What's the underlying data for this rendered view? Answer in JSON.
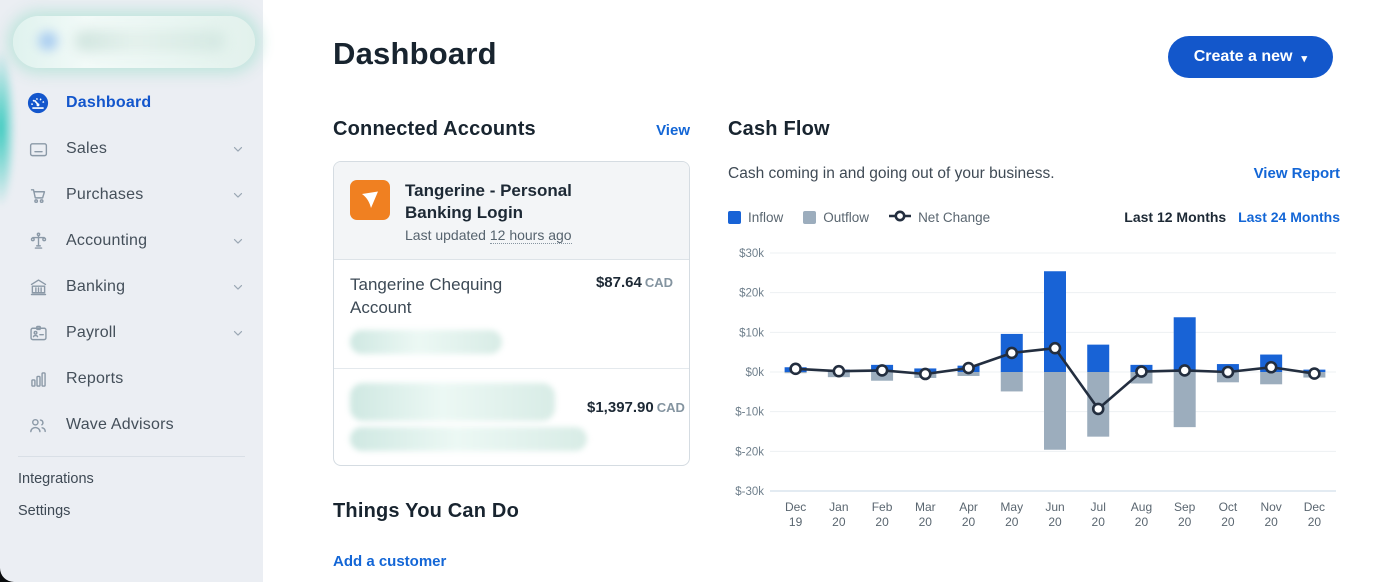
{
  "sidebar": {
    "items": [
      {
        "label": "Dashboard",
        "icon": "dashboard",
        "active": true,
        "chevron": false
      },
      {
        "label": "Sales",
        "icon": "sales",
        "active": false,
        "chevron": true
      },
      {
        "label": "Purchases",
        "icon": "purchases",
        "active": false,
        "chevron": true
      },
      {
        "label": "Accounting",
        "icon": "accounting",
        "active": false,
        "chevron": true
      },
      {
        "label": "Banking",
        "icon": "banking",
        "active": false,
        "chevron": true
      },
      {
        "label": "Payroll",
        "icon": "payroll",
        "active": false,
        "chevron": true
      },
      {
        "label": "Reports",
        "icon": "reports",
        "active": false,
        "chevron": false
      },
      {
        "label": "Wave Advisors",
        "icon": "advisors",
        "active": false,
        "chevron": false
      }
    ],
    "footer_items": [
      {
        "label": "Integrations"
      },
      {
        "label": "Settings"
      }
    ]
  },
  "header": {
    "title": "Dashboard",
    "create_button": "Create a new",
    "create_caret": "▾"
  },
  "connected_accounts": {
    "heading": "Connected Accounts",
    "view_link": "View",
    "bank": {
      "name": "Tangerine - Personal Banking Login",
      "last_updated_prefix": "Last updated ",
      "last_updated": "12 hours ago"
    },
    "accounts": [
      {
        "name": "Tangerine Chequing Account",
        "name_redacted": false,
        "amount": "$87.64",
        "currency": "CAD"
      },
      {
        "name": "",
        "name_redacted": true,
        "amount": "$1,397.90",
        "currency": "CAD"
      }
    ]
  },
  "things_you_can_do": {
    "heading": "Things You Can Do",
    "links": [
      "Add a customer"
    ]
  },
  "cash_flow": {
    "heading": "Cash Flow",
    "subtitle": "Cash coming in and going out of your business.",
    "view_report": "View Report",
    "legend": [
      "Inflow",
      "Outflow",
      "Net Change"
    ],
    "period_active": "Last 12 Months",
    "period_alt": "Last 24 Months"
  },
  "chart_data": {
    "type": "bar",
    "title": "Cash Flow",
    "categories": [
      "Dec 19",
      "Jan 20",
      "Feb 20",
      "Mar 20",
      "Apr 20",
      "May 20",
      "Jun 20",
      "Jul 20",
      "Aug 20",
      "Sep 20",
      "Oct 20",
      "Nov 20",
      "Dec 20"
    ],
    "series": [
      {
        "name": "Inflow",
        "type": "bar",
        "values": [
          1.2,
          0.6,
          1.8,
          0.9,
          1.6,
          9.6,
          25.4,
          6.9,
          1.8,
          13.8,
          2.0,
          4.4,
          0.6
        ]
      },
      {
        "name": "Outflow",
        "type": "bar",
        "values": [
          -0.3,
          -1.3,
          -2.2,
          -1.5,
          -1.0,
          -4.9,
          -19.6,
          -16.3,
          -2.9,
          -13.9,
          -2.6,
          -3.1,
          -1.4
        ]
      },
      {
        "name": "Net Change",
        "type": "line",
        "values": [
          0.8,
          0.2,
          0.4,
          -0.5,
          1.0,
          4.8,
          6.0,
          -9.3,
          0.1,
          0.4,
          0.0,
          1.2,
          -0.4
        ]
      }
    ],
    "unit": "$k",
    "ylim": [
      -30,
      30
    ],
    "yticks": [
      "$30k",
      "$20k",
      "$10k",
      "$0k",
      "$-10k",
      "$-20k",
      "$-30k"
    ],
    "grid": true,
    "legend_position": "top-left",
    "colors": {
      "inflow": "#1863d6",
      "outflow": "#9cadbd",
      "net": "#232e3f",
      "grid": "#edf0f3",
      "axis": "#c7d7e4"
    }
  }
}
